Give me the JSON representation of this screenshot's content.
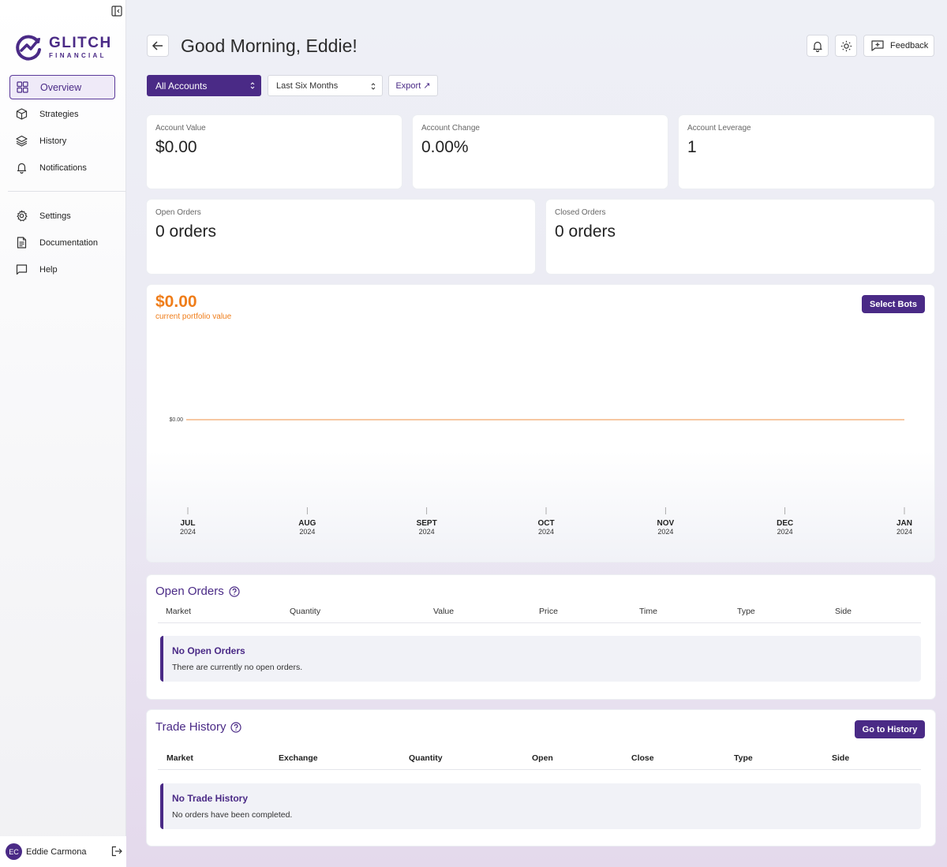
{
  "app": {
    "brand_word": "GLITCH",
    "brand_sub": "FINANCIAL",
    "accent": "#4a2a86",
    "orange": "#ef7d1a"
  },
  "sidebar": {
    "items": [
      {
        "label": "Overview",
        "icon": "grid-icon"
      },
      {
        "label": "Strategies",
        "icon": "cube-icon"
      },
      {
        "label": "History",
        "icon": "layers-icon"
      },
      {
        "label": "Notifications",
        "icon": "bell-icon"
      }
    ],
    "secondary": [
      {
        "label": "Settings",
        "icon": "gear-icon"
      },
      {
        "label": "Documentation",
        "icon": "document-icon"
      },
      {
        "label": "Help",
        "icon": "chat-icon"
      }
    ],
    "user": {
      "initials": "EC",
      "name": "Eddie Carmona"
    }
  },
  "header": {
    "greeting": "Good Morning, Eddie!",
    "feedback_label": "Feedback"
  },
  "filters": {
    "accounts_value": "All Accounts",
    "range_value": "Last Six Months",
    "export_label": "Export ↗"
  },
  "stats": {
    "account_value": {
      "label": "Account Value",
      "value": "$0.00"
    },
    "account_change": {
      "label": "Account Change",
      "value": "0.00%"
    },
    "account_leverage": {
      "label": "Account Leverage",
      "value": "1"
    },
    "open_orders": {
      "label": "Open Orders",
      "value": "0 orders"
    },
    "closed_orders": {
      "label": "Closed Orders",
      "value": "0 orders"
    }
  },
  "portfolio": {
    "value": "$0.00",
    "label": "current portfolio value",
    "select_bots_label": "Select Bots"
  },
  "chart_data": {
    "type": "line",
    "title": "",
    "xlabel": "",
    "ylabel": "",
    "y_tick_labels": [
      "$0.00"
    ],
    "x": [
      {
        "month": "JUL",
        "year": "2024"
      },
      {
        "month": "AUG",
        "year": "2024"
      },
      {
        "month": "SEPT",
        "year": "2024"
      },
      {
        "month": "OCT",
        "year": "2024"
      },
      {
        "month": "NOV",
        "year": "2024"
      },
      {
        "month": "DEC",
        "year": "2024"
      },
      {
        "month": "JAN",
        "year": "2024"
      }
    ],
    "series": [
      {
        "values": [
          0,
          0,
          0,
          0,
          0,
          0,
          0
        ]
      }
    ],
    "grid": false
  },
  "open_orders": {
    "title": "Open Orders",
    "columns": [
      "Market",
      "Quantity",
      "Value",
      "Price",
      "Time",
      "Type",
      "Side"
    ],
    "empty_title": "No Open Orders",
    "empty_message": "There are currently no open orders."
  },
  "trade_history": {
    "title": "Trade History",
    "go_label": "Go to History",
    "columns": [
      "Market",
      "Exchange",
      "Quantity",
      "Open",
      "Close",
      "Type",
      "Side"
    ],
    "empty_title": "No Trade History",
    "empty_message": "No orders have been completed."
  }
}
